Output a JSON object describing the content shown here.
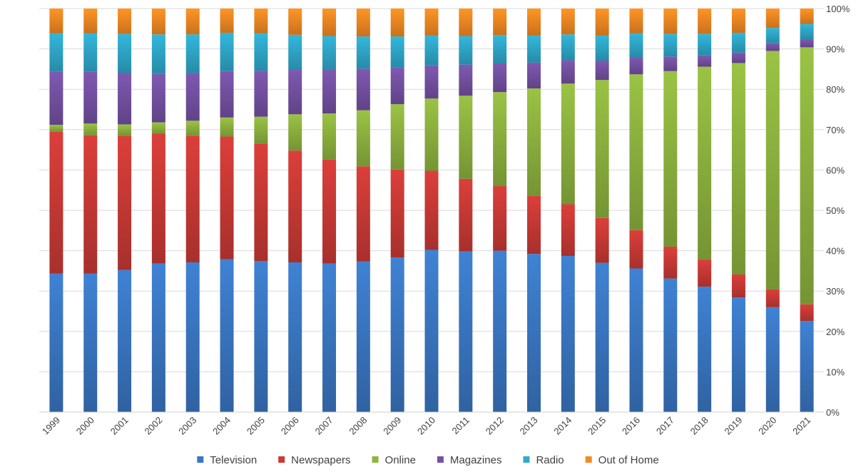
{
  "chart_data": {
    "type": "bar",
    "stacked": true,
    "normalized": true,
    "title": "",
    "xlabel": "",
    "ylabel": "",
    "ylim": [
      0,
      100
    ],
    "y_ticks": [
      "0%",
      "10%",
      "20%",
      "30%",
      "40%",
      "50%",
      "60%",
      "70%",
      "80%",
      "90%",
      "100%"
    ],
    "y_axis_side": "right",
    "grid": true,
    "legend_position": "bottom",
    "categories": [
      "1999",
      "2000",
      "2001",
      "2002",
      "2003",
      "2004",
      "2005",
      "2006",
      "2007",
      "2008",
      "2009",
      "2010",
      "2011",
      "2012",
      "2013",
      "2014",
      "2015",
      "2016",
      "2017",
      "2018",
      "2019",
      "2020",
      "2021"
    ],
    "series": [
      {
        "name": "Television",
        "color": "#3a78c4",
        "values": [
          34.3,
          34.3,
          35.2,
          36.8,
          37.1,
          37.9,
          37.4,
          37.1,
          36.8,
          37.3,
          38.3,
          40.2,
          39.8,
          40.0,
          39.2,
          38.7,
          37.0,
          35.6,
          33.1,
          31.1,
          28.4,
          26.0,
          22.6
        ]
      },
      {
        "name": "Newspapers",
        "color": "#cc3a36",
        "values": [
          35.2,
          34.3,
          33.3,
          32.2,
          31.4,
          30.4,
          29.1,
          27.7,
          25.8,
          23.6,
          21.8,
          19.6,
          18.0,
          16.0,
          14.4,
          12.8,
          11.1,
          9.5,
          7.9,
          6.7,
          5.7,
          4.4,
          4.1
        ]
      },
      {
        "name": "Online",
        "color": "#8fb53f",
        "values": [
          1.7,
          2.9,
          2.8,
          2.8,
          3.7,
          4.7,
          6.7,
          9.0,
          11.4,
          13.9,
          16.2,
          17.9,
          20.6,
          23.3,
          26.6,
          29.9,
          34.2,
          38.6,
          43.5,
          47.8,
          52.4,
          59.1,
          63.7
        ]
      },
      {
        "name": "Magazines",
        "color": "#7652a5",
        "values": [
          13.1,
          12.8,
          12.8,
          12.0,
          11.8,
          11.5,
          11.4,
          11.0,
          10.9,
          10.3,
          9.1,
          8.2,
          7.7,
          7.1,
          6.4,
          5.8,
          4.8,
          4.2,
          3.6,
          2.8,
          2.6,
          1.9,
          2.0
        ]
      },
      {
        "name": "Radio",
        "color": "#2fa9cc",
        "values": [
          9.6,
          9.6,
          9.6,
          9.8,
          9.6,
          9.5,
          9.3,
          8.7,
          8.3,
          8.0,
          7.7,
          7.4,
          7.1,
          7.0,
          6.7,
          6.4,
          6.2,
          6.0,
          5.6,
          5.3,
          4.9,
          3.8,
          3.8
        ]
      },
      {
        "name": "Out of Home",
        "color": "#f58a22",
        "values": [
          6.1,
          6.1,
          6.3,
          6.4,
          6.4,
          6.0,
          6.1,
          6.5,
          6.8,
          6.9,
          6.9,
          6.7,
          6.8,
          6.6,
          6.7,
          6.4,
          6.7,
          6.1,
          6.3,
          6.3,
          6.0,
          4.8,
          3.8
        ]
      }
    ]
  }
}
